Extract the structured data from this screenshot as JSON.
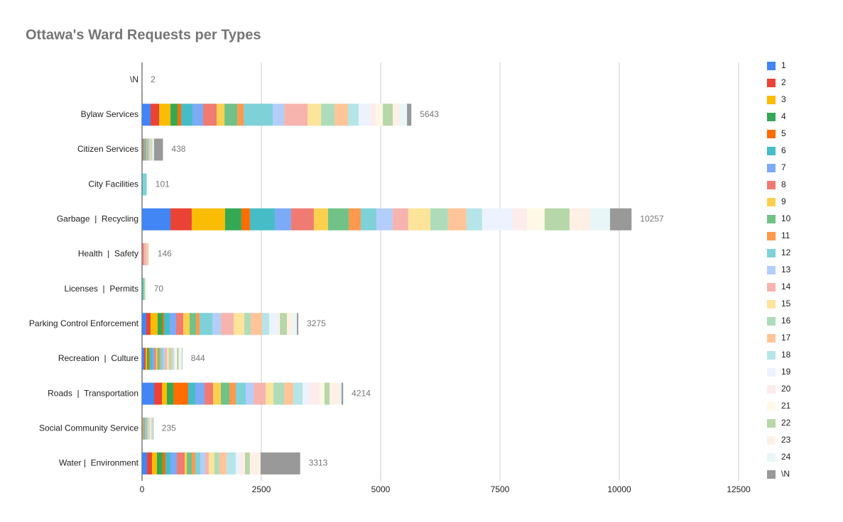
{
  "chart_data": {
    "type": "stacked-bar-horizontal",
    "title": "Ottawa's Ward Requests per Types",
    "categories": [
      "\\N",
      "Bylaw Services",
      "Citizen Services",
      "City Facilities",
      "Garbage  |  Recycling",
      "Health  |  Safety",
      "Licenses  |  Permits",
      "Parking Control Enforcement",
      "Recreation  |  Culture",
      "Roads  |  Transportation",
      "Social Community Service",
      "Water |  Environment"
    ],
    "totals": [
      2,
      5643,
      438,
      101,
      10257,
      146,
      70,
      3275,
      844,
      4214,
      235,
      3313
    ],
    "xlim": [
      0,
      12500
    ],
    "xticks": [
      0,
      2500,
      5000,
      7500,
      10000,
      12500
    ],
    "grid": true,
    "legend": "right",
    "series": [
      {
        "name": "1",
        "color": "#4285f4",
        "values": [
          0,
          179,
          15,
          3,
          595,
          5,
          10,
          89,
          45,
          253,
          10,
          104
        ]
      },
      {
        "name": "2",
        "color": "#ea4335",
        "values": [
          0,
          179,
          10,
          0,
          446,
          5,
          0,
          89,
          30,
          164,
          8,
          104
        ]
      },
      {
        "name": "3",
        "color": "#fbbc04",
        "values": [
          0,
          238,
          12,
          0,
          699,
          0,
          0,
          149,
          30,
          104,
          10,
          104
        ]
      },
      {
        "name": "4",
        "color": "#34a853",
        "values": [
          0,
          149,
          10,
          0,
          342,
          0,
          10,
          104,
          40,
          134,
          8,
          119
        ]
      },
      {
        "name": "5",
        "color": "#ff6d01",
        "values": [
          0,
          74,
          8,
          0,
          179,
          0,
          0,
          30,
          20,
          312,
          5,
          60
        ]
      },
      {
        "name": "6",
        "color": "#46bdc6",
        "values": [
          0,
          238,
          15,
          15,
          521,
          0,
          0,
          119,
          50,
          149,
          12,
          104
        ]
      },
      {
        "name": "7",
        "color": "#7baaf7",
        "values": [
          0,
          223,
          12,
          0,
          342,
          0,
          0,
          134,
          40,
          193,
          10,
          134
        ]
      },
      {
        "name": "8",
        "color": "#f07b72",
        "values": [
          0,
          283,
          10,
          0,
          476,
          30,
          0,
          149,
          35,
          179,
          8,
          164
        ]
      },
      {
        "name": "9",
        "color": "#fcd04f",
        "values": [
          0,
          164,
          8,
          0,
          298,
          0,
          0,
          134,
          30,
          164,
          8,
          45
        ]
      },
      {
        "name": "10",
        "color": "#71c287",
        "values": [
          0,
          268,
          15,
          0,
          432,
          0,
          20,
          134,
          45,
          179,
          12,
          104
        ]
      },
      {
        "name": "11",
        "color": "#ff994d",
        "values": [
          0,
          134,
          8,
          0,
          253,
          0,
          0,
          74,
          25,
          134,
          5,
          74
        ]
      },
      {
        "name": "12",
        "color": "#7ed1d7",
        "values": [
          0,
          610,
          20,
          80,
          327,
          0,
          0,
          268,
          50,
          208,
          15,
          104
        ]
      },
      {
        "name": "13",
        "color": "#b3cefb",
        "values": [
          0,
          238,
          10,
          0,
          342,
          0,
          0,
          179,
          40,
          164,
          10,
          104
        ]
      },
      {
        "name": "14",
        "color": "#f7b4ae",
        "values": [
          0,
          491,
          15,
          0,
          327,
          60,
          0,
          268,
          45,
          253,
          10,
          74
        ]
      },
      {
        "name": "15",
        "color": "#fde49b",
        "values": [
          0,
          283,
          10,
          0,
          461,
          10,
          0,
          223,
          35,
          164,
          10,
          119
        ]
      },
      {
        "name": "16",
        "color": "#aedcba",
        "values": [
          0,
          283,
          15,
          0,
          372,
          8,
          15,
          134,
          50,
          223,
          12,
          104
        ]
      },
      {
        "name": "17",
        "color": "#ffc599",
        "values": [
          0,
          283,
          10,
          0,
          387,
          20,
          0,
          238,
          30,
          193,
          8,
          149
        ]
      },
      {
        "name": "18",
        "color": "#b5e5e8",
        "values": [
          0,
          223,
          15,
          0,
          327,
          0,
          0,
          149,
          35,
          193,
          12,
          193
        ]
      },
      {
        "name": "19",
        "color": "#ecf3fe",
        "values": [
          0,
          238,
          5,
          0,
          640,
          0,
          0,
          179,
          15,
          149,
          5,
          89
        ]
      },
      {
        "name": "20",
        "color": "#fdeceb",
        "values": [
          0,
          119,
          5,
          0,
          298,
          0,
          0,
          30,
          15,
          208,
          5,
          89
        ]
      },
      {
        "name": "21",
        "color": "#fff8e6",
        "values": [
          0,
          149,
          5,
          0,
          372,
          8,
          0,
          15,
          25,
          104,
          8,
          15
        ]
      },
      {
        "name": "22",
        "color": "#b6d7a8",
        "values": [
          0,
          208,
          10,
          0,
          521,
          0,
          15,
          149,
          40,
          104,
          15,
          104
        ]
      },
      {
        "name": "23",
        "color": "#fff0e6",
        "values": [
          0,
          134,
          5,
          0,
          432,
          0,
          0,
          119,
          25,
          208,
          5,
          208
        ]
      },
      {
        "name": "24",
        "color": "#e8f6f7",
        "values": [
          0,
          164,
          5,
          3,
          417,
          0,
          0,
          89,
          40,
          45,
          10,
          15
        ]
      },
      {
        "name": "\\N",
        "color": "#999999",
        "values": [
          2,
          91,
          185,
          0,
          451,
          0,
          0,
          30,
          9,
          33,
          14,
          830
        ]
      }
    ]
  }
}
